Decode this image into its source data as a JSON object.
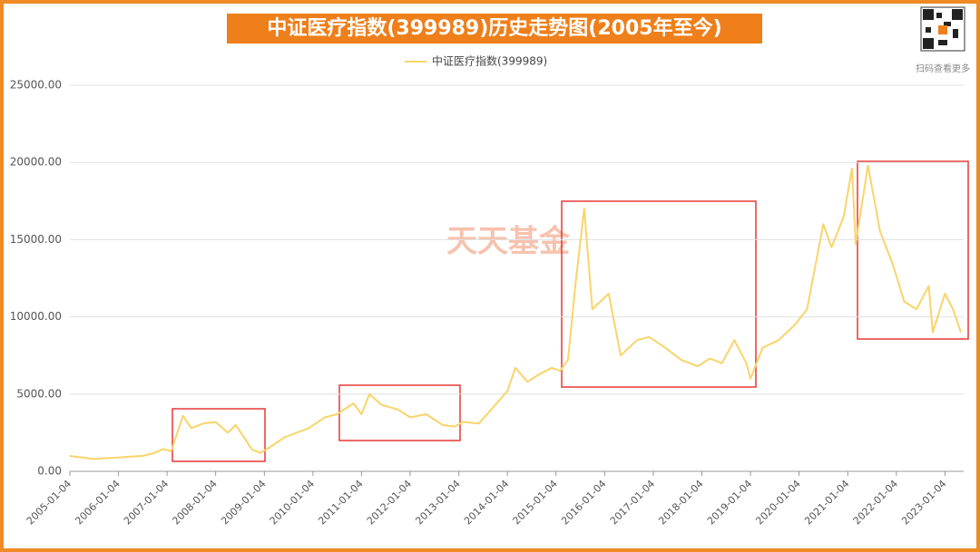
{
  "chart_data": {
    "type": "line",
    "title": "中证医疗指数(399989)历史走势图(2005年至今)",
    "watermark": "天天基金",
    "qr_caption": "扫码查看更多",
    "x": [
      "2005-01-04",
      "2005-04-04",
      "2005-07-04",
      "2005-10-04",
      "2006-01-04",
      "2006-04-04",
      "2006-07-04",
      "2006-10-04",
      "2006-12-04",
      "2007-02-04",
      "2007-05-04",
      "2007-07-04",
      "2007-10-04",
      "2008-01-04",
      "2008-04-04",
      "2008-06-04",
      "2008-10-04",
      "2008-12-04",
      "2009-02-04",
      "2009-06-04",
      "2009-12-04",
      "2010-04-04",
      "2010-07-04",
      "2010-11-04",
      "2011-01-04",
      "2011-03-04",
      "2011-06-04",
      "2011-10-04",
      "2012-01-04",
      "2012-05-04",
      "2012-09-04",
      "2012-12-04",
      "2013-02-04",
      "2013-06-04",
      "2013-09-04",
      "2014-01-04",
      "2014-03-04",
      "2014-06-04",
      "2014-09-04",
      "2014-12-04",
      "2015-02-04",
      "2015-04-04",
      "2015-06-04",
      "2015-08-04",
      "2015-10-04",
      "2015-12-04",
      "2016-02-04",
      "2016-05-04",
      "2016-09-04",
      "2016-12-04",
      "2017-04-04",
      "2017-08-04",
      "2017-12-04",
      "2018-03-04",
      "2018-06-04",
      "2018-09-04",
      "2018-12-04",
      "2019-01-04",
      "2019-04-04",
      "2019-08-04",
      "2019-12-04",
      "2020-03-04",
      "2020-07-04",
      "2020-09-04",
      "2020-12-04",
      "2021-02-04",
      "2021-03-04",
      "2021-06-04",
      "2021-09-04",
      "2021-12-04",
      "2022-03-04",
      "2022-06-04",
      "2022-09-04",
      "2022-10-04",
      "2023-01-04",
      "2023-03-04",
      "2023-05-04"
    ],
    "series": [
      {
        "name": "中证医疗指数(399989)",
        "color": "#f9d46a",
        "values": [
          1000,
          900,
          800,
          850,
          900,
          950,
          1000,
          1200,
          1450,
          1300,
          3600,
          2800,
          3100,
          3200,
          2500,
          3000,
          1400,
          1200,
          1500,
          2200,
          2800,
          3500,
          3700,
          4400,
          3700,
          5000,
          4300,
          4000,
          3500,
          3700,
          3000,
          2900,
          3200,
          3100,
          4000,
          5200,
          6700,
          5800,
          6300,
          6700,
          6500,
          7200,
          12500,
          17000,
          10500,
          11000,
          11500,
          7500,
          8500,
          8700,
          8000,
          7200,
          6800,
          7300,
          7000,
          8500,
          7000,
          6000,
          8000,
          8500,
          9500,
          10500,
          16000,
          14500,
          16500,
          19600,
          14700,
          19800,
          15500,
          13500,
          11000,
          10500,
          12000,
          9000,
          11500,
          10500,
          9000
        ]
      }
    ],
    "xlim": [
      "2005-01-04",
      "2023-05-04"
    ],
    "xticks": [
      "2005-01-04",
      "2006-01-04",
      "2007-01-04",
      "2008-01-04",
      "2009-01-04",
      "2010-01-04",
      "2011-01-04",
      "2012-01-04",
      "2013-01-04",
      "2014-01-04",
      "2015-01-04",
      "2016-01-04",
      "2017-01-04",
      "2018-01-04",
      "2019-01-04",
      "2020-01-04",
      "2021-01-04",
      "2022-01-04",
      "2023-01-04"
    ],
    "ylim": [
      0,
      25000
    ],
    "yticks": [
      {
        "value": 0,
        "label": "0.00"
      },
      {
        "value": 5000,
        "label": "5000.00"
      },
      {
        "value": 10000,
        "label": "10000.00"
      },
      {
        "value": 15000,
        "label": "15000.00"
      },
      {
        "value": 20000,
        "label": "20000.00"
      },
      {
        "value": 25000,
        "label": "25000.00"
      }
    ],
    "grid": true
  }
}
